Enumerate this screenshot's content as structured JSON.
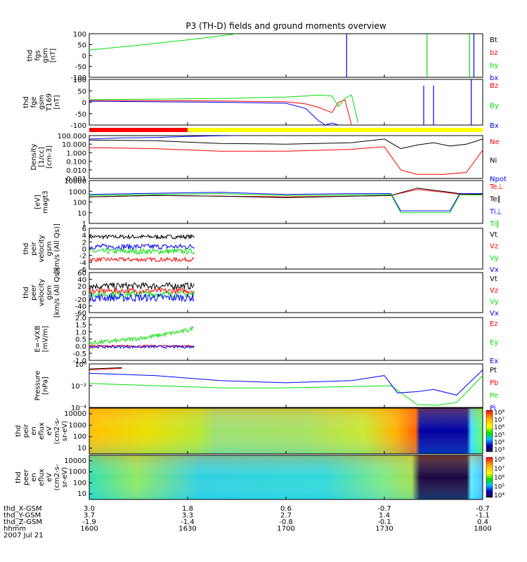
{
  "title": "P3 (TH-D) fields and ground moments overview",
  "colors": {
    "black": "#000000",
    "red": "#ff0000",
    "green": "#00e000",
    "blue": "#0000ff",
    "yellow": "#ffff00"
  },
  "colorbar_labels": {
    "peir": [
      "10⁸",
      "10⁷",
      "10⁶",
      "10⁵",
      "10⁴",
      "10³"
    ],
    "peer": [
      "10⁸",
      "10⁷",
      "10⁶",
      "10⁵",
      "10⁴"
    ]
  },
  "xaxis": {
    "rows": [
      {
        "label": "thd_X-GSM",
        "values": [
          "3.0",
          "1.8",
          "0.6",
          "-0.7",
          "-0.7"
        ]
      },
      {
        "label": "thd_Y-GSM",
        "values": [
          "3.7",
          "3.3",
          "2.7",
          "1.4",
          "-1.1"
        ]
      },
      {
        "label": "thd_Z-GSM",
        "values": [
          "-1.9",
          "-1.4",
          "-0.8",
          "-0.1",
          "0.4"
        ]
      },
      {
        "label": "hhmm",
        "values": [
          "1600",
          "1630",
          "1700",
          "1730",
          "1800"
        ]
      }
    ],
    "date": "2007 Jul 21"
  },
  "chart_data": [
    {
      "type": "line",
      "id": "fgs",
      "ylabel": [
        "thd",
        "fgs",
        "gsm",
        "[nT]"
      ],
      "yticks": [
        "100",
        "50",
        "0",
        "-50",
        "-100"
      ],
      "ylim": [
        -100,
        100
      ],
      "x_minutes": [
        0,
        60,
        120
      ],
      "series": [
        {
          "name": "Bt",
          "color": "black",
          "x": [],
          "y": []
        },
        {
          "name": "bz",
          "color": "red",
          "x": [],
          "y": []
        },
        {
          "name": "by",
          "color": "green",
          "x": [
            0,
            10,
            20,
            30,
            40,
            45
          ],
          "y": [
            25,
            40,
            55,
            72,
            90,
            100
          ]
        },
        {
          "name": "bx",
          "color": "blue",
          "x": [],
          "y": []
        }
      ],
      "spikes": [
        {
          "color": "blue",
          "x": 78.5,
          "y": [
            -100,
            100
          ]
        },
        {
          "color": "green",
          "x": 103,
          "y": [
            -100,
            100
          ]
        },
        {
          "color": "green",
          "x": 116,
          "y": [
            -100,
            100
          ]
        },
        {
          "color": "blue",
          "x": 117.3,
          "y": [
            -100,
            100
          ]
        }
      ]
    },
    {
      "type": "line",
      "id": "fge",
      "ylabel": [
        "thd",
        "fge",
        "gsm",
        "T169",
        "[nT]"
      ],
      "yticks": [
        "100",
        "50",
        "0",
        "-50",
        "-100"
      ],
      "ylim": [
        -120,
        100
      ],
      "series": [
        {
          "name": "Bz",
          "color": "red",
          "x": [
            0,
            20,
            40,
            60,
            66,
            70,
            74,
            76,
            78,
            80
          ],
          "y": [
            -2,
            -3,
            -4,
            -8,
            -18,
            -35,
            -60,
            -10,
            0,
            -120
          ]
        },
        {
          "name": "By",
          "color": "green",
          "x": [
            0,
            20,
            40,
            60,
            66,
            70,
            74,
            76,
            78,
            80,
            82
          ],
          "y": [
            3,
            5,
            8,
            15,
            20,
            25,
            20,
            -30,
            10,
            25,
            -110
          ]
        },
        {
          "name": "Bx",
          "color": "blue",
          "x": [
            0,
            20,
            40,
            60,
            66,
            68,
            70,
            72,
            74,
            76
          ],
          "y": [
            -5,
            -8,
            -10,
            -15,
            -40,
            -70,
            -100,
            -120,
            -110,
            -120
          ]
        }
      ],
      "spikes": [
        {
          "color": "blue",
          "x": 102,
          "y": [
            -120,
            70
          ]
        },
        {
          "color": "blue",
          "x": 105,
          "y": [
            -120,
            70
          ]
        },
        {
          "color": "blue",
          "x": 116.5,
          "y": [
            -120,
            100
          ]
        }
      ],
      "mode_bar": [
        {
          "from": 0,
          "to": 30,
          "color": "red"
        },
        {
          "from": 30,
          "to": 120,
          "color": "yellow"
        }
      ]
    },
    {
      "type": "line",
      "id": "density",
      "log": true,
      "ylabel": [
        "Density",
        "[1/cc]",
        "[cm-3]"
      ],
      "yticks": [
        "100.000",
        "10.000",
        "1.000",
        "0.100",
        "0.010",
        "0.001"
      ],
      "ylim": [
        0.001,
        100
      ],
      "series": [
        {
          "name": "Ne",
          "color": "red",
          "x": [
            0,
            20,
            40,
            60,
            80,
            90,
            95,
            100,
            108,
            115,
            120
          ],
          "y": [
            4,
            3,
            1.5,
            1.5,
            2.5,
            5,
            0.01,
            0.003,
            0.003,
            0.005,
            2
          ]
        },
        {
          "name": "Ni",
          "color": "black",
          "x": [
            0,
            20,
            40,
            60,
            80,
            90,
            95,
            100,
            105,
            110,
            115,
            120
          ],
          "y": [
            30,
            25,
            12,
            10,
            15,
            40,
            3,
            8,
            15,
            6,
            10,
            40
          ]
        },
        {
          "name": "Npot",
          "color": "blue",
          "x": [
            0,
            10,
            20,
            30,
            40,
            45
          ],
          "y": [
            40,
            55,
            60,
            80,
            95,
            100
          ]
        }
      ]
    },
    {
      "type": "line",
      "id": "temperature",
      "log": true,
      "ylabel": [
        "[eV]",
        "magt3"
      ],
      "yticks": [
        "10000",
        "1000",
        "100",
        "10",
        "1"
      ],
      "ylim": [
        1,
        10000
      ],
      "series": [
        {
          "name": "Te⊥",
          "color": "red",
          "x": [
            0,
            20,
            40,
            60,
            80,
            92,
            100,
            110,
            113,
            120
          ],
          "y": [
            300,
            400,
            350,
            300,
            350,
            400,
            1500,
            700,
            500,
            500
          ]
        },
        {
          "name": "Te∥",
          "color": "black",
          "x": [
            0,
            20,
            40,
            60,
            80,
            92,
            100,
            110,
            113,
            120
          ],
          "y": [
            300,
            400,
            350,
            250,
            350,
            400,
            2000,
            800,
            600,
            500
          ]
        },
        {
          "name": "Ti⊥",
          "color": "blue",
          "x": [
            0,
            20,
            40,
            60,
            80,
            92,
            95,
            110,
            113,
            120
          ],
          "y": [
            500,
            650,
            800,
            500,
            600,
            600,
            15,
            15,
            600,
            600
          ]
        },
        {
          "name": "Ti∥",
          "color": "green",
          "x": [
            0,
            20,
            40,
            60,
            80,
            92,
            95,
            110,
            113,
            120
          ],
          "y": [
            400,
            500,
            600,
            400,
            450,
            500,
            10,
            10,
            450,
            450
          ]
        }
      ]
    },
    {
      "type": "line",
      "id": "peir_velocity",
      "ylabel": [
        "thd",
        "peir",
        "velocity",
        "gsm",
        "[km/s (All Qs)]"
      ],
      "yticks": [
        "6",
        "4",
        "2",
        "0",
        "-2",
        "-4",
        "-6"
      ],
      "ylim": [
        -6,
        6
      ],
      "series": [
        {
          "name": "Vt",
          "color": "black",
          "mean": 3.5,
          "noise": 0.6,
          "x": [
            0,
            32
          ]
        },
        {
          "name": "Vz",
          "color": "red",
          "mean": -3.2,
          "noise": 0.6,
          "x": [
            0,
            32
          ]
        },
        {
          "name": "Vy",
          "color": "green",
          "mean": -0.8,
          "noise": 0.8,
          "x": [
            0,
            32
          ]
        },
        {
          "name": "Vx",
          "color": "blue",
          "mean": 0.6,
          "noise": 0.8,
          "x": [
            0,
            32
          ]
        }
      ]
    },
    {
      "type": "line",
      "id": "peer_velocity",
      "ylabel": [
        "thd",
        "peer",
        "velocity",
        "gsm",
        "[km/s (All Qs)]"
      ],
      "yticks": [
        "60",
        "40",
        "20",
        "0",
        "-20",
        "-40",
        "-60"
      ],
      "ylim": [
        -60,
        60
      ],
      "series": [
        {
          "name": "Vt",
          "color": "black",
          "mean": 20,
          "noise": 10,
          "x": [
            0,
            32
          ]
        },
        {
          "name": "Vz",
          "color": "red",
          "mean": 5,
          "noise": 8,
          "x": [
            0,
            32
          ]
        },
        {
          "name": "Vy",
          "color": "green",
          "mean": -5,
          "noise": 10,
          "x": [
            0,
            32
          ]
        },
        {
          "name": "Vx",
          "color": "blue",
          "mean": -15,
          "noise": 12,
          "x": [
            0,
            32
          ]
        }
      ]
    },
    {
      "type": "line",
      "id": "efield",
      "ylabel": [
        "E=-VXB",
        "[mV/m]"
      ],
      "yticks": [
        "2.0",
        "1.5",
        "1.0",
        "0.5",
        "0.0",
        "-0.5",
        "-1.0"
      ],
      "ylim": [
        -1.0,
        2.0
      ],
      "series": [
        {
          "name": "Ez",
          "color": "red",
          "mean": 0.0,
          "noise": 0.08,
          "x": [
            0,
            32
          ]
        },
        {
          "name": "Ey",
          "color": "green",
          "x": [
            0,
            10,
            20,
            30,
            32
          ],
          "y": [
            0.2,
            0.4,
            0.7,
            1.1,
            1.3
          ],
          "noise": 0.15
        },
        {
          "name": "Ex",
          "color": "blue",
          "mean": -0.05,
          "noise": 0.1,
          "x": [
            0,
            32
          ]
        }
      ]
    },
    {
      "type": "line",
      "id": "pressure",
      "log": true,
      "ylabel": [
        "Pressure",
        "[nPa]"
      ],
      "yticks": [
        "10⁰",
        "10⁻²",
        "10⁻⁴"
      ],
      "ylim": [
        2e-05,
        20
      ],
      "series": [
        {
          "name": "Pt",
          "color": "black",
          "x": [
            0,
            10
          ],
          "y": [
            4,
            6
          ]
        },
        {
          "name": "Pb",
          "color": "red",
          "x": [
            0,
            10
          ],
          "y": [
            3,
            5
          ]
        },
        {
          "name": "Pe",
          "color": "green",
          "x": [
            0,
            20,
            40,
            60,
            80,
            92,
            100,
            106,
            112,
            120
          ],
          "y": [
            0.04,
            0.02,
            0.01,
            0.01,
            0.015,
            0.02,
            5e-05,
            4e-05,
            0.0001,
            0.5
          ]
        },
        {
          "name": "Pi",
          "color": "blue",
          "x": [
            0,
            20,
            40,
            60,
            80,
            90,
            94,
            100,
            105,
            112,
            120
          ],
          "y": [
            1,
            0.5,
            0.1,
            0.05,
            0.1,
            0.5,
            0.002,
            0.003,
            0.006,
            0.001,
            3
          ]
        }
      ]
    },
    {
      "type": "heatmap",
      "id": "peir_eflux",
      "ylabel": [
        "thd",
        "peir",
        "en",
        "eflux",
        "eV",
        "(cm2-s-",
        "sr-eV)"
      ],
      "yticks": [
        "10000",
        "1000",
        "100",
        "10"
      ]
    },
    {
      "type": "heatmap",
      "id": "peer_eflux",
      "ylabel": [
        "thd",
        "peer",
        "en",
        "eflux",
        "eV",
        "(cm2-s-",
        "sr-eV)"
      ],
      "yticks": [
        "10000",
        "1000",
        "100",
        "10"
      ]
    }
  ]
}
